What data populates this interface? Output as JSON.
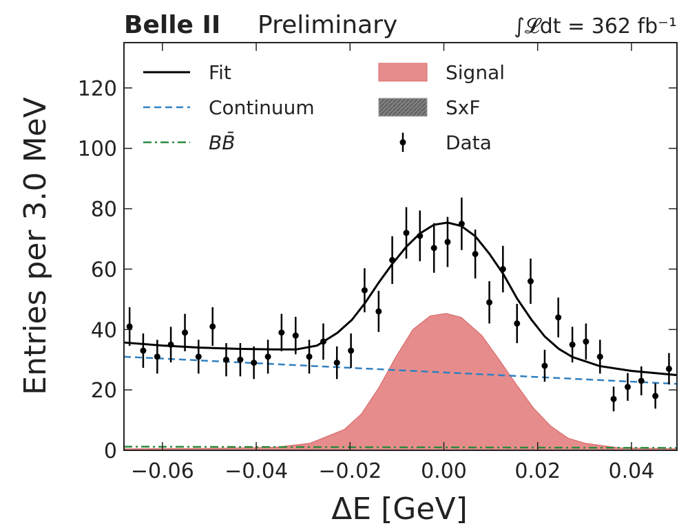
{
  "chart_data": {
    "type": "line",
    "title": "Belle II",
    "subtitle": "Preliminary",
    "annotation": "∫𝓛dt = 362 fb⁻¹",
    "x_label": "ΔE [GeV]",
    "y_label": "Entries per 3.0 MeV",
    "xlim": [
      -0.0682,
      0.0497
    ],
    "ylim": [
      0,
      135
    ],
    "xticks": [
      {
        "value": -0.06,
        "label": "−0.06"
      },
      {
        "value": -0.04,
        "label": "−0.04"
      },
      {
        "value": -0.02,
        "label": "−0.02"
      },
      {
        "value": 0,
        "label": "0.00"
      },
      {
        "value": 0.02,
        "label": "0.02"
      },
      {
        "value": 0.04,
        "label": "0.04"
      }
    ],
    "yticks": [
      0,
      20,
      40,
      60,
      80,
      100,
      120
    ],
    "series": [
      {
        "name": "Fit",
        "color": "#000000",
        "style": "line",
        "x": [
          -0.0682,
          -0.06,
          -0.052,
          -0.044,
          -0.036,
          -0.0315,
          -0.027,
          -0.0227,
          -0.0196,
          -0.0167,
          -0.0139,
          -0.011,
          -0.008,
          -0.0051,
          -0.0021,
          0.0008,
          0.0037,
          0.0067,
          0.0097,
          0.0127,
          0.0156,
          0.0186,
          0.0215,
          0.0245,
          0.0274,
          0.0332,
          0.04,
          0.0497
        ],
        "values": [
          35.7,
          34.7,
          34,
          33.6,
          33.4,
          33.4,
          34.7,
          38.9,
          43.2,
          49,
          55.5,
          61.7,
          67.4,
          71.8,
          74.7,
          75.4,
          74.3,
          70.9,
          65.1,
          58.3,
          50.3,
          43.4,
          37.7,
          33.6,
          30.9,
          27.9,
          26.3,
          24.9
        ]
      },
      {
        "name": "Continuum",
        "color": "#2f7fc1",
        "style": "dashed",
        "x": [
          -0.0682,
          0.0497
        ],
        "values": [
          31,
          22
        ]
      },
      {
        "name": "BB̄",
        "color": "#2a8a3e",
        "style": "dashdot",
        "x": [
          -0.0682,
          0.0497
        ],
        "values": [
          1.2,
          0.8
        ]
      },
      {
        "name": "Signal",
        "color": "#e78c8c",
        "style": "area",
        "x": [
          -0.0682,
          -0.0506,
          -0.0359,
          -0.0286,
          -0.0212,
          -0.0176,
          -0.0139,
          -0.0102,
          -0.0066,
          -0.0029,
          0.0005,
          0.0037,
          0.0081,
          0.0118,
          0.0155,
          0.0191,
          0.0228,
          0.0265,
          0.0302,
          0.0375,
          0.0497
        ],
        "values": [
          0.5,
          0.6,
          1,
          2.3,
          6.9,
          12,
          20.6,
          31,
          40,
          44.5,
          45.3,
          44,
          38,
          30,
          21.7,
          14,
          8,
          4,
          2.3,
          0.8,
          0.5
        ]
      },
      {
        "name": "SxF",
        "color": "#808080",
        "style": "hatched"
      },
      {
        "name": "Data",
        "color": "#000000",
        "style": "points",
        "x": [
          -0.067,
          -0.0641,
          -0.0611,
          -0.0582,
          -0.0552,
          -0.0523,
          -0.0493,
          -0.0464,
          -0.0434,
          -0.0405,
          -0.0375,
          -0.0346,
          -0.0316,
          -0.0287,
          -0.0257,
          -0.0228,
          -0.0198,
          -0.0169,
          -0.0139,
          -0.011,
          -0.008,
          -0.0051,
          -0.0021,
          0.0008,
          0.0038,
          0.0067,
          0.0097,
          0.0126,
          0.0156,
          0.0185,
          0.0215,
          0.0244,
          0.0274,
          0.0303,
          0.0333,
          0.0362,
          0.0392,
          0.0421,
          0.0451,
          0.048
        ],
        "values": [
          41,
          33,
          31,
          35,
          39,
          31,
          41,
          30,
          30,
          29,
          31,
          39,
          38,
          31,
          36,
          29,
          33,
          53,
          46,
          63,
          72,
          71,
          67,
          69,
          75,
          65,
          49,
          60,
          42,
          56,
          28,
          44,
          35,
          36,
          31,
          17,
          21,
          23,
          18,
          27
        ],
        "errors": [
          6.4,
          5.7,
          5.6,
          5.9,
          6.2,
          5.6,
          6.4,
          5.5,
          5.5,
          5.4,
          5.6,
          6.2,
          6.2,
          5.6,
          6,
          5.4,
          5.7,
          7.3,
          6.8,
          7.9,
          8.5,
          8.4,
          8.2,
          8.3,
          8.7,
          8.1,
          7,
          7.7,
          6.5,
          7.5,
          5.3,
          6.6,
          5.9,
          6,
          5.6,
          4.1,
          4.6,
          4.8,
          4.2,
          5.2
        ]
      }
    ]
  }
}
